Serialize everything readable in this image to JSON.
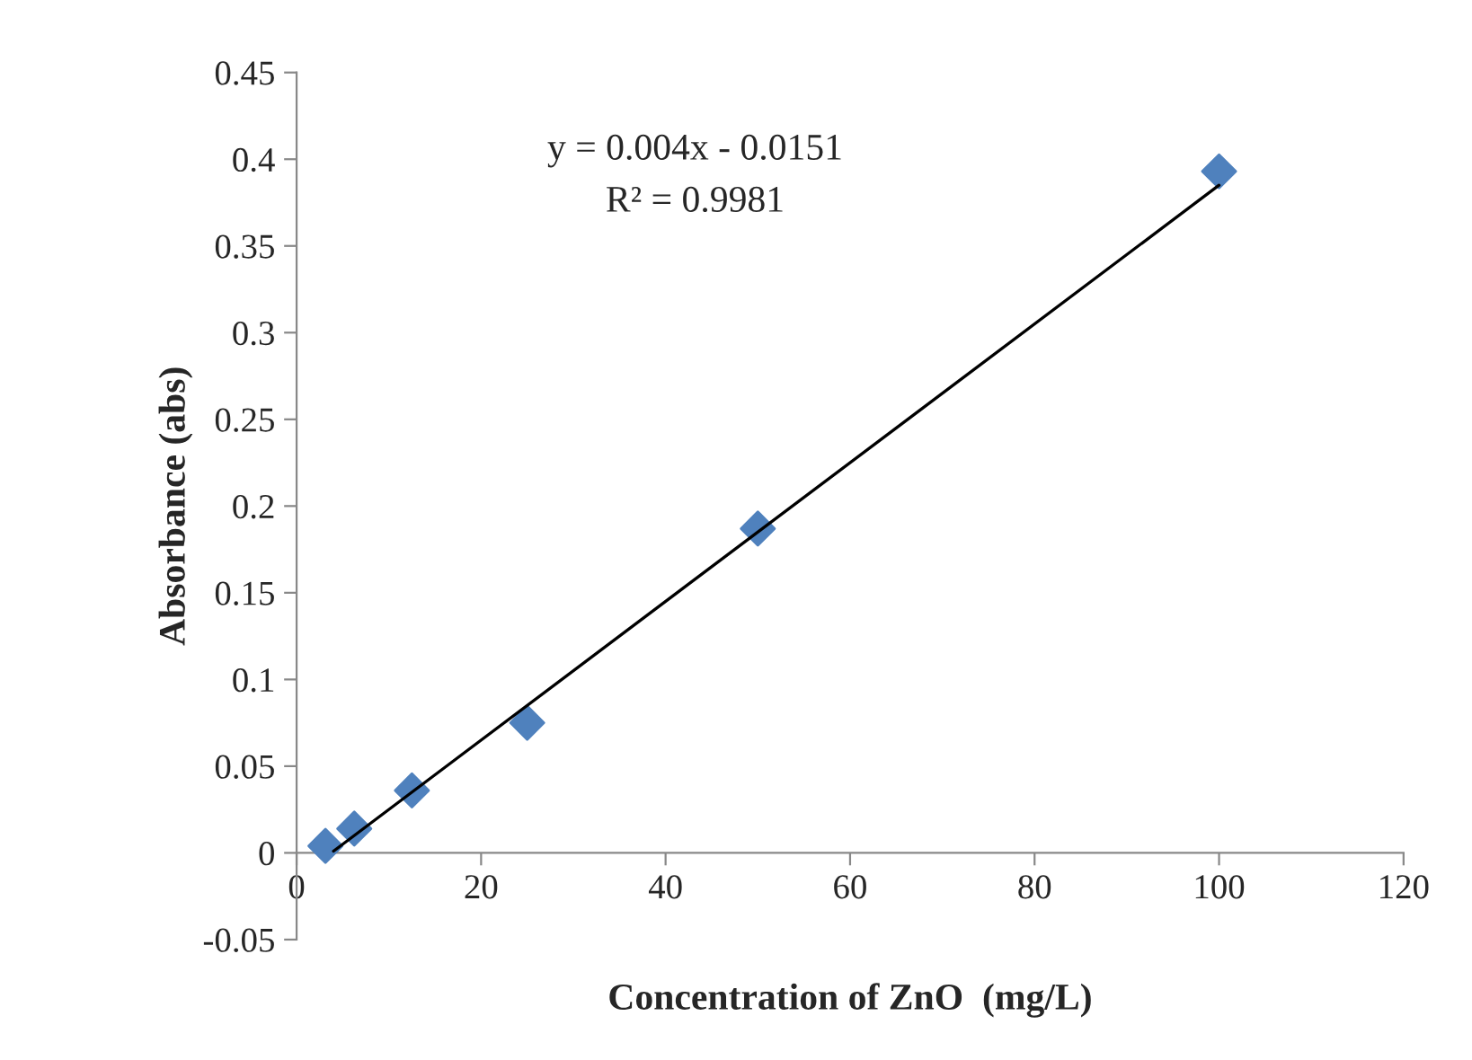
{
  "chart_data": {
    "type": "scatter",
    "xlabel": "Concentration of ZnO  (mg/L)",
    "ylabel": "Absorbance (abs)",
    "series": [
      {
        "color": "#4f81bd",
        "marker": "diamond",
        "x": [
          3.125,
          6.25,
          12.5,
          25,
          50,
          100
        ],
        "values": [
          0.004,
          0.014,
          0.036,
          0.075,
          0.187,
          0.393
        ]
      },
      {
        "type": "line",
        "color": "#000000",
        "marker": "none",
        "line_style": "solid",
        "x": [
          4,
          100
        ],
        "values": [
          0.001,
          0.385
        ]
      }
    ],
    "annotations": [
      "y = 0.004x - 0.0151",
      "R² = 0.9981"
    ],
    "xlim": [
      0,
      120
    ],
    "xticks": [
      0,
      20,
      40,
      60,
      80,
      100,
      120
    ],
    "ylim": [
      -0.05,
      0.45
    ],
    "yticks": [
      -0.05,
      0,
      0.05,
      0.1,
      0.15,
      0.2,
      0.25,
      0.3,
      0.35,
      0.4,
      0.45
    ],
    "grid": false,
    "legend": false
  }
}
